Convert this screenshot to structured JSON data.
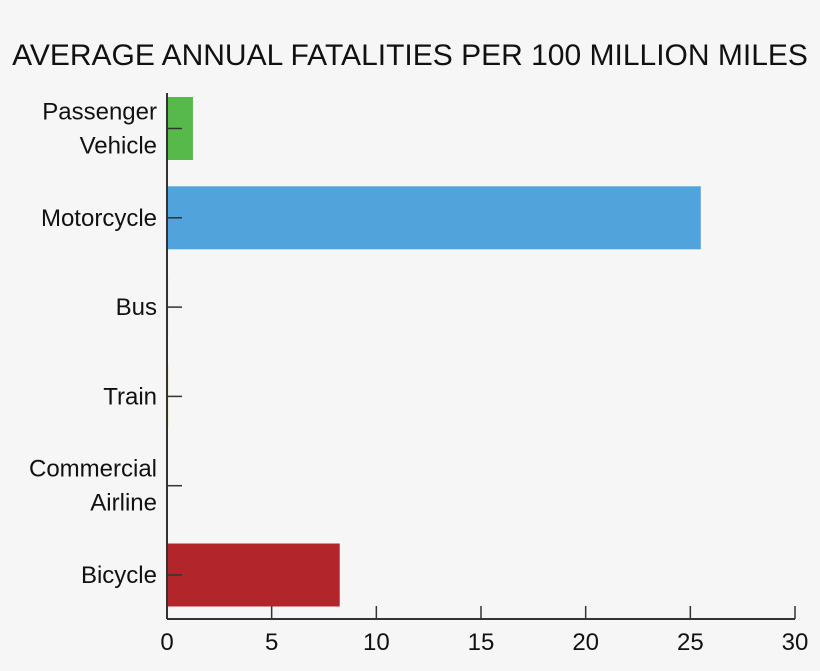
{
  "chart_data": {
    "type": "bar",
    "orientation": "horizontal",
    "title": "AVERAGE ANNUAL FATALITIES PER 100 MILLION MILES",
    "categories": [
      [
        "Passenger",
        "Vehicle"
      ],
      [
        "Motorcycle"
      ],
      [
        "Bus"
      ],
      [
        "Train"
      ],
      [
        "Commercial",
        "Airline"
      ],
      [
        "Bicycle"
      ]
    ],
    "values": [
      1.24,
      25.5,
      0.05,
      0.06,
      0.0,
      8.25
    ],
    "colors": [
      "#57b94a",
      "#50a4db",
      "#c8784a",
      "#e8e040",
      "#888888",
      "#b1252b"
    ],
    "xlim": [
      0,
      30
    ],
    "xticks": [
      0,
      5,
      10,
      15,
      20,
      25,
      30
    ],
    "xlabel": "",
    "ylabel": "",
    "grid": false,
    "legend": "none"
  }
}
